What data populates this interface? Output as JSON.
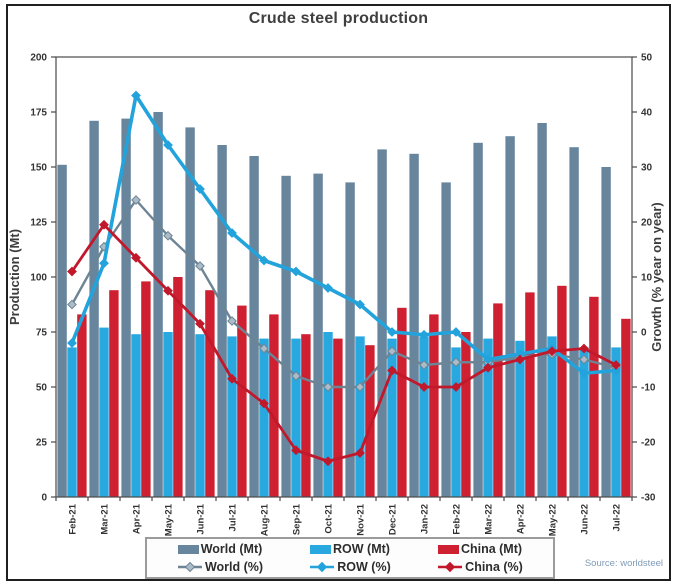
{
  "title": "Crude steel production",
  "source": "Source: worldsteel",
  "left_axis": {
    "label": "Production (Mt)",
    "ticks": [
      0,
      25,
      50,
      75,
      100,
      125,
      150,
      175,
      200
    ],
    "min": 0,
    "max": 200
  },
  "right_axis": {
    "label": "Growth (% year on year)",
    "ticks": [
      -30,
      -20,
      -10,
      0,
      10,
      20,
      30,
      40,
      50
    ],
    "min": -30,
    "max": 50
  },
  "chart_data": {
    "type": "bar+line combo",
    "categories": [
      "Feb-21",
      "Mar-21",
      "Apr-21",
      "May-21",
      "Jun-21",
      "Jul-21",
      "Aug-21",
      "Sep-21",
      "Oct-21",
      "Nov-21",
      "Dec-21",
      "Jan-22",
      "Feb-22",
      "Mar-22",
      "Apr-22",
      "May-22",
      "Jun-22",
      "Jul-22"
    ],
    "bar_series": [
      {
        "name": "World (Mt)",
        "axis": "left",
        "color": "#67869D",
        "values": [
          151,
          171,
          172,
          175,
          168,
          160,
          155,
          146,
          147,
          143,
          158,
          156,
          143,
          161,
          164,
          170,
          159,
          150
        ]
      },
      {
        "name": "ROW (Mt)",
        "axis": "left",
        "color": "#29A8E0",
        "values": [
          68,
          77,
          74,
          75,
          74,
          73,
          72,
          72,
          75,
          73,
          72,
          73,
          68,
          72,
          71,
          73,
          68,
          68
        ]
      },
      {
        "name": "China (Mt)",
        "axis": "left",
        "color": "#CE2030",
        "values": [
          83,
          94,
          98,
          100,
          94,
          87,
          83,
          74,
          72,
          69,
          86,
          83,
          75,
          88,
          93,
          96,
          91,
          81
        ]
      }
    ],
    "line_series": [
      {
        "name": "World (%)",
        "axis": "right",
        "color": "#6D8494",
        "marker_fill": "#ABBcc8",
        "width": 2.4,
        "values": [
          5,
          15.5,
          24,
          17.5,
          12,
          2,
          -3,
          -8,
          -10,
          -10,
          -3.5,
          -6,
          -5.5,
          -5.5,
          -4.5,
          -4,
          -5,
          -6.5
        ]
      },
      {
        "name": "ROW (%)",
        "axis": "right",
        "color": "#23A3DC",
        "marker_fill": "#23A3DC",
        "width": 3.6,
        "values": [
          -2,
          12.5,
          43,
          34,
          26,
          18,
          13,
          11,
          8,
          5,
          0,
          -0.5,
          0,
          -5,
          -4,
          -3,
          -7.5,
          -7
        ]
      },
      {
        "name": "China (%)",
        "axis": "right",
        "color": "#C2182B",
        "marker_fill": "#C2182B",
        "width": 2.8,
        "values": [
          11,
          19.5,
          13.5,
          7.5,
          1.5,
          -8.5,
          -13,
          -21.5,
          -23.5,
          -22,
          -7,
          -10,
          -10,
          -6.5,
          -5,
          -3.5,
          -3,
          -6
        ]
      }
    ],
    "left_ylim": [
      0,
      200
    ],
    "right_ylim": [
      -30,
      50
    ],
    "grid": false,
    "legend_position": "bottom"
  },
  "legend": {
    "items": [
      {
        "label": "World (Mt)",
        "type": "bar",
        "color": "#67869D",
        "marker_fill": "#67869D"
      },
      {
        "label": "ROW (Mt)",
        "type": "bar",
        "color": "#29A8E0",
        "marker_fill": "#29A8E0"
      },
      {
        "label": "China (Mt)",
        "type": "bar",
        "color": "#CE2030",
        "marker_fill": "#CE2030"
      },
      {
        "label": "World (%)",
        "type": "line",
        "color": "#6D8494",
        "marker_fill": "#ABBCC8"
      },
      {
        "label": "ROW (%)",
        "type": "line",
        "color": "#23A3DC",
        "marker_fill": "#23A3DC"
      },
      {
        "label": "China (%)",
        "type": "line",
        "color": "#C2182B",
        "marker_fill": "#C2182B"
      }
    ]
  }
}
